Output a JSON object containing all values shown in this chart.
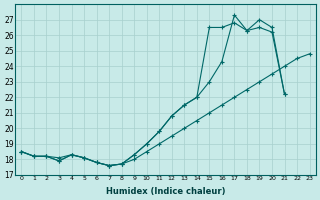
{
  "xlabel": "Humidex (Indice chaleur)",
  "background_color": "#c8eae8",
  "grid_color": "#a8d0ce",
  "line_color": "#006868",
  "x_values": [
    0,
    1,
    2,
    3,
    4,
    5,
    6,
    7,
    8,
    9,
    10,
    11,
    12,
    13,
    14,
    15,
    16,
    17,
    18,
    19,
    20,
    21,
    22,
    23
  ],
  "line1_y": [
    18.5,
    18.2,
    18.2,
    18.1,
    18.3,
    18.1,
    17.8,
    17.6,
    17.7,
    18.0,
    18.5,
    19.0,
    19.5,
    20.0,
    20.5,
    21.0,
    21.5,
    22.0,
    22.5,
    23.0,
    23.5,
    24.0,
    24.5,
    24.8
  ],
  "line2_y": [
    18.5,
    18.2,
    18.2,
    17.9,
    18.3,
    18.1,
    17.8,
    17.6,
    17.7,
    18.3,
    19.0,
    19.8,
    20.8,
    21.5,
    22.0,
    23.0,
    24.3,
    27.3,
    26.3,
    27.0,
    26.5,
    22.2,
    null,
    null
  ],
  "line3_y": [
    18.5,
    18.2,
    18.2,
    17.9,
    18.3,
    18.1,
    17.8,
    17.6,
    17.7,
    18.3,
    19.0,
    19.8,
    20.8,
    21.5,
    22.0,
    26.5,
    26.5,
    26.8,
    26.3,
    26.5,
    26.2,
    22.2,
    null,
    null
  ],
  "ylim": [
    17,
    28
  ],
  "yticks": [
    17,
    18,
    19,
    20,
    21,
    22,
    23,
    24,
    25,
    26,
    27
  ],
  "xlim": [
    -0.5,
    23.5
  ]
}
